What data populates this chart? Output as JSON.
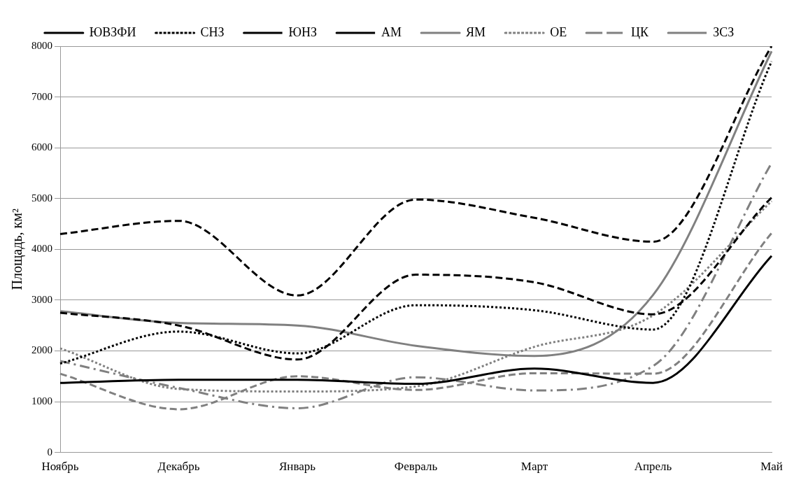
{
  "chart_data": {
    "type": "line",
    "ylabel": "Площадь, км²",
    "categories": [
      "Ноябрь",
      "Декабрь",
      "Январь",
      "Февраль",
      "Март",
      "Апрель",
      "Май"
    ],
    "ylim": [
      0,
      8000
    ],
    "yticks": [
      0,
      1000,
      2000,
      3000,
      4000,
      5000,
      6000,
      7000,
      8000
    ],
    "grid": "y",
    "legend": "top",
    "marker": "none",
    "series": [
      {
        "name": "ЮВЗФИ",
        "color": "#000000",
        "line_style": "solid",
        "values": [
          1370,
          1430,
          1430,
          1350,
          1650,
          1370,
          3870
        ]
      },
      {
        "name": "СНЗ",
        "color": "#000000",
        "line_style": "dotted",
        "values": [
          1750,
          2380,
          1950,
          2900,
          2800,
          2420,
          7700
        ]
      },
      {
        "name": "ЮНЗ",
        "color": "#000000",
        "line_style": "dashed",
        "values": [
          4300,
          4560,
          3090,
          4980,
          4620,
          4150,
          8000
        ]
      },
      {
        "name": "АМ",
        "color": "#000000",
        "line_style": "dashed",
        "values": [
          2750,
          2500,
          1830,
          3500,
          3350,
          2720,
          5020
        ]
      },
      {
        "name": "ЯМ",
        "color": "#808080",
        "line_style": "solid",
        "values": [
          2780,
          2550,
          2500,
          2100,
          1900,
          3100,
          7900
        ]
      },
      {
        "name": "ОЕ",
        "color": "#808080",
        "line_style": "dotted",
        "values": [
          2050,
          1250,
          1200,
          1300,
          2080,
          2700,
          4950
        ]
      },
      {
        "name": "ЦК",
        "color": "#808080",
        "line_style": "dashdot",
        "values": [
          1800,
          1270,
          870,
          1480,
          1220,
          1700,
          5700
        ]
      },
      {
        "name": "ЗСЗ",
        "color": "#808080",
        "line_style": "dashed",
        "values": [
          1550,
          850,
          1500,
          1230,
          1560,
          1550,
          4320
        ]
      }
    ]
  }
}
